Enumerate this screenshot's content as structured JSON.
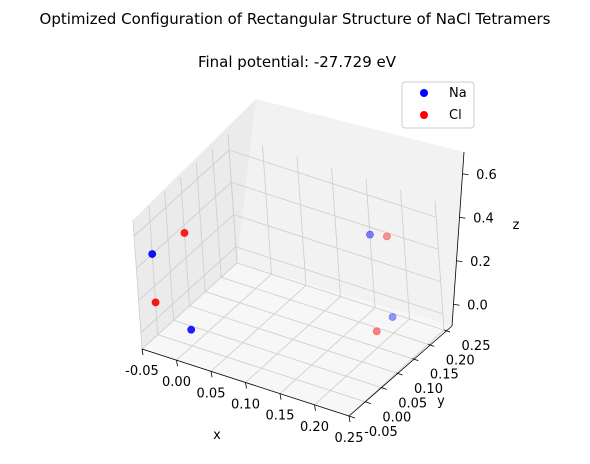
{
  "chart_data": {
    "type": "scatter",
    "projection": "3d",
    "title": "Optimized Configuration of Rectangular Structure of NaCl Tetramers",
    "subtitle": "Final potential: -27.729 eV",
    "xlabel": "x",
    "ylabel": "y",
    "zlabel": "z",
    "xlim": [
      -0.05,
      0.25
    ],
    "ylim": [
      -0.05,
      0.25
    ],
    "zlim": [
      -0.1,
      0.7
    ],
    "xticks": [
      "-0.05",
      "0.00",
      "0.05",
      "0.10",
      "0.15",
      "0.20",
      "0.25"
    ],
    "yticks": [
      "-0.05",
      "0.00",
      "0.05",
      "0.10",
      "0.15",
      "0.20",
      "0.25"
    ],
    "zticks": [
      "0.0",
      "0.2",
      "0.4",
      "0.6"
    ],
    "grid": true,
    "legend_position": "top-right",
    "series": [
      {
        "name": "Na",
        "color": "#0000ff",
        "points": [
          {
            "x": 0.0,
            "y": 0.0,
            "z": 0.0
          },
          {
            "x": -0.05,
            "y": 0.0,
            "z": 0.4
          },
          {
            "x": 0.2,
            "y": 0.2,
            "z": 0.0
          },
          {
            "x": 0.2,
            "y": 0.15,
            "z": 0.6
          }
        ]
      },
      {
        "name": "Cl",
        "color": "#ff0000",
        "points": [
          {
            "x": -0.05,
            "y": 0.0,
            "z": 0.1
          },
          {
            "x": 0.0,
            "y": 0.0,
            "z": 0.6
          },
          {
            "x": 0.2,
            "y": 0.15,
            "z": 0.0
          },
          {
            "x": 0.2,
            "y": 0.2,
            "z": 0.5
          }
        ]
      }
    ]
  }
}
